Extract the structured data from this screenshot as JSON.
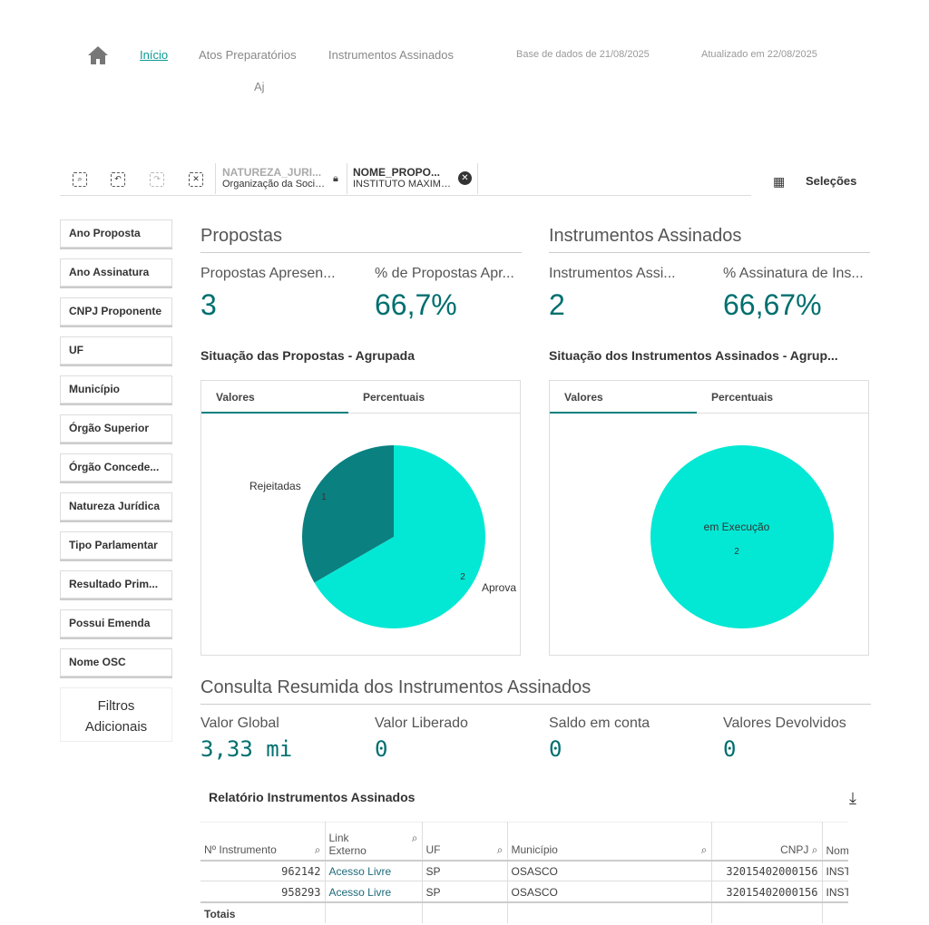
{
  "nav": {
    "home": "home-icon",
    "items": [
      "Início",
      "Atos Preparatórios",
      "Instrumentos Assinados"
    ],
    "sub": "Aj",
    "base": "Base de dados de 21/08/2025",
    "atualizado": "Atualizado em 22/08/2025"
  },
  "toolbar": {
    "selections": [
      {
        "field": "NATUREZA_JURI...",
        "value": "Organização da Socieda..."
      },
      {
        "field": "NOME_PROPO...",
        "value": "INSTITUTO MAXIMO..."
      }
    ],
    "selecoes": "Seleções"
  },
  "filters": [
    "Ano Proposta",
    "Ano Assinatura",
    "CNPJ Proponente",
    "UF",
    "Município",
    "Órgão Superior",
    "Órgão Concede...",
    "Natureza Jurídica",
    "Tipo Parlamentar",
    "Resultado Prim...",
    "Possui Emenda",
    "Nome OSC"
  ],
  "filtros_adicionais": [
    "Filtros",
    "Adicionais"
  ],
  "propostas": {
    "title": "Propostas",
    "k1_label": "Propostas Apresen...",
    "k1_value": "3",
    "k2_label": "% de Propostas Apr...",
    "k2_value": "66,7%",
    "chart_title": "Situação das Propostas - Agrupada",
    "tabs": [
      "Valores",
      "Percentuais"
    ]
  },
  "instrumentos": {
    "title": "Instrumentos Assinados",
    "k1_label": "Instrumentos Assi...",
    "k1_value": "2",
    "k2_label": "% Assinatura de Ins...",
    "k2_value": "66,67%",
    "chart_title": "Situação dos Instrumentos Assinados - Agrup...",
    "tabs": [
      "Valores",
      "Percentuais"
    ]
  },
  "chart_data": [
    {
      "type": "pie",
      "title": "Situação das Propostas - Agrupada",
      "slices": [
        {
          "label": "Rejeitadas",
          "value": 1,
          "color": "#0a8080"
        },
        {
          "label": "Aprova",
          "value": 2,
          "color": "#03e8d4"
        }
      ]
    },
    {
      "type": "pie",
      "title": "Situação dos Instrumentos Assinados - Agrup...",
      "slices": [
        {
          "label": "em Execução",
          "value": 2,
          "color": "#03e8d4"
        }
      ]
    }
  ],
  "consulta": {
    "title": "Consulta Resumida dos Instrumentos Assinados",
    "kpis": [
      {
        "label": "Valor Global",
        "value": "3,33 mi"
      },
      {
        "label": "Valor Liberado",
        "value": "0"
      },
      {
        "label": "Saldo em conta",
        "value": "0"
      },
      {
        "label": "Valores Devolvidos",
        "value": "0"
      }
    ]
  },
  "relatorio": {
    "title": "Relatório Instrumentos Assinados",
    "headers": [
      "Nº Instrumento",
      "Link Externo",
      "UF",
      "Município",
      "CNPJ",
      "Nom"
    ],
    "rows": [
      [
        "962142",
        "Acesso Livre",
        "SP",
        "OSASCO",
        "32015402000156",
        "INST"
      ],
      [
        "958293",
        "Acesso Livre",
        "SP",
        "OSASCO",
        "32015402000156",
        "INST"
      ]
    ],
    "totais": "Totais"
  }
}
